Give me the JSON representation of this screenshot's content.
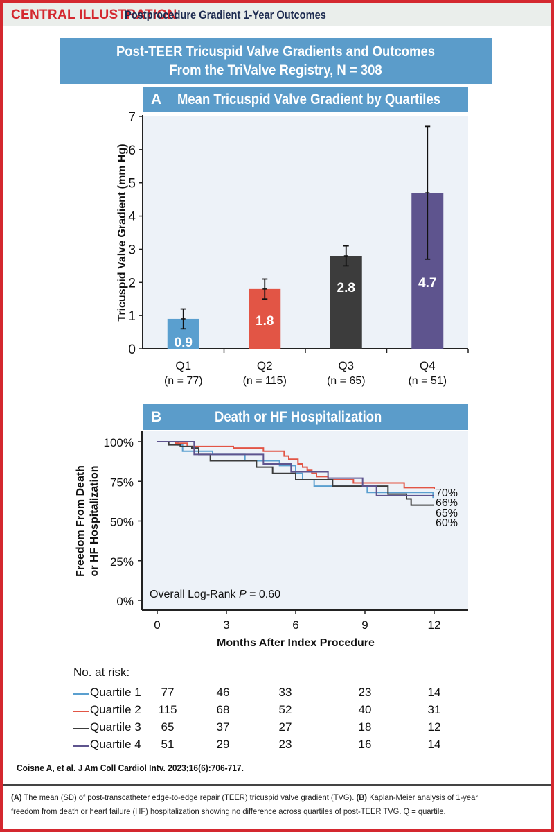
{
  "header": {
    "label": "CENTRAL ILLUSTRATION",
    "subtitle": "Postprocedure Gradient 1-Year Outcomes"
  },
  "main_title": {
    "line1": "Post-TEER Tricuspid Valve Gradients and Outcomes",
    "line2": "From the TriValve Registry, N = 308"
  },
  "colors": {
    "q1": "#5a9fcf",
    "q2": "#e25545",
    "q3": "#3c3c3c",
    "q4": "#5e548e",
    "panel_bar": "#5b9cca",
    "plot_bg": "#edf2f8",
    "brand_red": "#d4282f"
  },
  "panels": {
    "a": {
      "letter": "A",
      "title": "Mean Tricuspid Valve Gradient by Quartiles"
    },
    "b": {
      "letter": "B",
      "title": "Death or HF Hospitalization"
    }
  },
  "chart_data": [
    {
      "type": "bar",
      "title": "Mean Tricuspid Valve Gradient by Quartiles",
      "xlabel": "",
      "ylabel": "Tricuspid Valve Gradient (mm Hg)",
      "ylim": [
        0,
        7
      ],
      "yticks": [
        0,
        1,
        2,
        3,
        4,
        5,
        6,
        7
      ],
      "categories": [
        "Q1",
        "Q2",
        "Q3",
        "Q4"
      ],
      "category_sublabels": [
        "(n = 77)",
        "(n = 115)",
        "(n = 65)",
        "(n = 51)"
      ],
      "values": [
        0.9,
        1.8,
        2.8,
        4.7
      ],
      "value_labels": [
        "0.9",
        "1.8",
        "2.8",
        "4.7"
      ],
      "error_sd": [
        0.3,
        0.3,
        0.3,
        2.0
      ],
      "grid": false
    },
    {
      "type": "line",
      "subtype": "kaplan-meier",
      "title": "Death or HF Hospitalization",
      "xlabel": "Months After Index Procedure",
      "ylabel": "Freedom From Death or HF Hospitalization",
      "xlim": [
        0,
        12
      ],
      "ylim": [
        0,
        100
      ],
      "xticks": [
        0,
        3,
        6,
        9,
        12
      ],
      "yticks": [
        0,
        25,
        50,
        75,
        100
      ],
      "ytick_labels": [
        "0%",
        "25%",
        "50%",
        "75%",
        "100%"
      ],
      "annotation": {
        "prefix": "Overall Log-Rank ",
        "p": "P",
        "suffix": " = 0.60"
      },
      "grid": false,
      "series": [
        {
          "name": "Quartile 1",
          "color_key": "q1",
          "end_label": "65%",
          "steps": [
            [
              0,
              100
            ],
            [
              0.9,
              98
            ],
            [
              1.1,
              94
            ],
            [
              2.4,
              92
            ],
            [
              3.8,
              88
            ],
            [
              5.3,
              85
            ],
            [
              6.0,
              80
            ],
            [
              6.3,
              76
            ],
            [
              6.8,
              72
            ],
            [
              9.0,
              72
            ],
            [
              9.1,
              68
            ],
            [
              11.9,
              68
            ],
            [
              11.95,
              65
            ],
            [
              12,
              65
            ]
          ]
        },
        {
          "name": "Quartile 2",
          "color_key": "q2",
          "end_label": "70%",
          "steps": [
            [
              0,
              100
            ],
            [
              0.8,
              99
            ],
            [
              1.3,
              97
            ],
            [
              3.3,
              96
            ],
            [
              4.6,
              94
            ],
            [
              5.5,
              91
            ],
            [
              5.7,
              89
            ],
            [
              6.1,
              86
            ],
            [
              6.3,
              84
            ],
            [
              6.5,
              82
            ],
            [
              6.7,
              80
            ],
            [
              6.9,
              78
            ],
            [
              7.4,
              76
            ],
            [
              8.5,
              74
            ],
            [
              10.7,
              71
            ],
            [
              12,
              70
            ]
          ]
        },
        {
          "name": "Quartile 3",
          "color_key": "q3",
          "end_label": "60%",
          "steps": [
            [
              0,
              100
            ],
            [
              0.5,
              98
            ],
            [
              1.0,
              97
            ],
            [
              1.5,
              96
            ],
            [
              1.8,
              92
            ],
            [
              2.3,
              88
            ],
            [
              4.3,
              84
            ],
            [
              5.0,
              80
            ],
            [
              6.0,
              76
            ],
            [
              7.6,
              72
            ],
            [
              10.0,
              67
            ],
            [
              10.8,
              64
            ],
            [
              11.0,
              60
            ],
            [
              12,
              60
            ]
          ]
        },
        {
          "name": "Quartile 4",
          "color_key": "q4",
          "end_label": "66%",
          "steps": [
            [
              0,
              100
            ],
            [
              1.6,
              92
            ],
            [
              4.6,
              86
            ],
            [
              5.8,
              81
            ],
            [
              7.4,
              77
            ],
            [
              8.9,
              72
            ],
            [
              9.5,
              66
            ],
            [
              11.4,
              66
            ],
            [
              12,
              66
            ]
          ]
        }
      ]
    }
  ],
  "risk_table": {
    "title": "No. at risk:",
    "timepoints": [
      0,
      3,
      6,
      9,
      12
    ],
    "rows": [
      {
        "label": "Quartile 1",
        "color_key": "q1",
        "values": [
          "77",
          "46",
          "33",
          "23",
          "14"
        ]
      },
      {
        "label": "Quartile 2",
        "color_key": "q2",
        "values": [
          "115",
          "68",
          "52",
          "40",
          "31"
        ]
      },
      {
        "label": "Quartile 3",
        "color_key": "q3",
        "values": [
          "65",
          "37",
          "27",
          "18",
          "12"
        ]
      },
      {
        "label": "Quartile 4",
        "color_key": "q4",
        "values": [
          "51",
          "29",
          "23",
          "16",
          "14"
        ]
      }
    ]
  },
  "citation": "Coisne A, et al. J Am Coll Cardiol Intv. 2023;16(6):706-717.",
  "caption": {
    "a_label": "(A)",
    "a_text": " The mean (SD) of post-transcatheter edge-to-edge repair (TEER) tricuspid valve gradient (TVG). ",
    "b_label": "(B)",
    "b_text_line1": " Kaplan-Meier analysis of 1-year",
    "b_text_line2": "freedom from death or heart failure (HF) hospitalization showing no difference across quartiles of post-TEER TVG. Q = quartile."
  }
}
